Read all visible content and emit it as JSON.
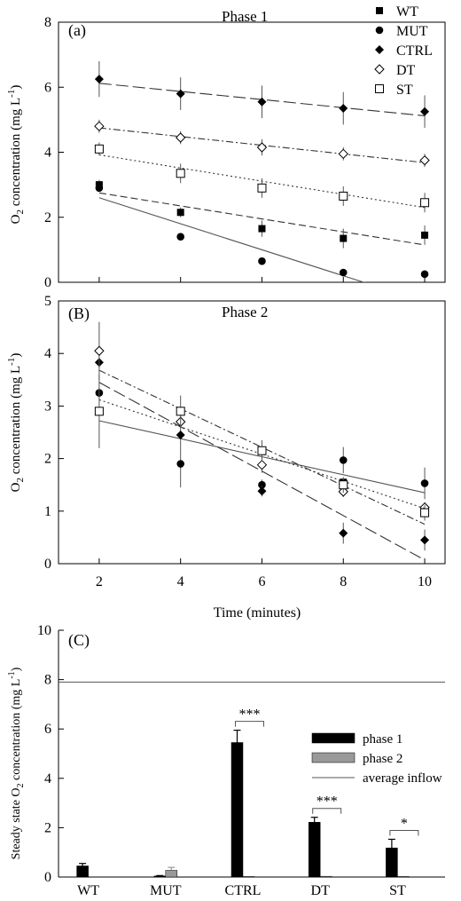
{
  "chart_data": [
    {
      "panel": "(a)",
      "type": "scatter",
      "title": "Phase 1",
      "ylabel": "O2 concentration (mg L-1)",
      "xlabel": "",
      "ylim": [
        0,
        8
      ],
      "yticks": [
        0,
        2,
        4,
        6,
        8
      ],
      "xlim": [
        1,
        10.5
      ],
      "legend_position": "top-right",
      "series": [
        {
          "name": "WT",
          "marker": "square-filled",
          "x": [
            2,
            4,
            6,
            8,
            10
          ],
          "y": [
            3.0,
            2.15,
            1.65,
            1.35,
            1.45
          ],
          "err": [
            0.15,
            0.15,
            0.25,
            0.3,
            0.3
          ],
          "fit": [
            2.75,
            1.15
          ],
          "dash": "8,4"
        },
        {
          "name": "MUT",
          "marker": "circle-filled",
          "x": [
            2,
            4,
            6,
            8,
            10
          ],
          "y": [
            2.9,
            1.4,
            0.65,
            0.3,
            0.25
          ],
          "err": [
            0.1,
            0.1,
            0.05,
            0.03,
            0.03
          ],
          "fit": [
            2.6,
            -0.6
          ],
          "dash": ""
        },
        {
          "name": "CTRL",
          "marker": "diamond-filled",
          "x": [
            2,
            4,
            6,
            8,
            10
          ],
          "y": [
            6.25,
            5.8,
            5.55,
            5.35,
            5.25
          ],
          "err": [
            0.55,
            0.5,
            0.5,
            0.5,
            0.5
          ],
          "fit": [
            6.12,
            5.12
          ],
          "dash": "14,5"
        },
        {
          "name": "DT",
          "marker": "diamond-open",
          "x": [
            2,
            4,
            6,
            8,
            10
          ],
          "y": [
            4.8,
            4.45,
            4.15,
            3.95,
            3.75
          ],
          "err": [
            0.2,
            0.2,
            0.25,
            0.2,
            0.2
          ],
          "fit": [
            4.75,
            3.68
          ],
          "dash": "8,3,2,3"
        },
        {
          "name": "ST",
          "marker": "square-open",
          "x": [
            2,
            4,
            6,
            8,
            10
          ],
          "y": [
            4.1,
            3.35,
            2.9,
            2.65,
            2.45
          ],
          "err": [
            0.2,
            0.3,
            0.3,
            0.3,
            0.3
          ],
          "fit": [
            3.92,
            2.3
          ],
          "dash": "2,3"
        }
      ]
    },
    {
      "panel": "(B)",
      "type": "scatter",
      "title": "Phase 2",
      "ylabel": "O2 concentration (mg L-1)",
      "xlabel": "Time (minutes)",
      "ylim": [
        0,
        5
      ],
      "yticks": [
        0,
        1,
        2,
        3,
        4,
        5
      ],
      "xlim": [
        1,
        10.5
      ],
      "xticks": [
        2,
        4,
        6,
        8,
        10
      ],
      "series": [
        {
          "name": "WT",
          "marker": "square-filled",
          "x": [
            2,
            4,
            6,
            8,
            10
          ],
          "y": [
            2.9,
            2.9,
            2.15,
            1.55,
            0.97
          ],
          "err": [
            0.05,
            0.05,
            0.05,
            0.05,
            0.05
          ],
          "fit": null,
          "dash": ""
        },
        {
          "name": "MUT",
          "marker": "circle-filled",
          "x": [
            2,
            4,
            6,
            8,
            10
          ],
          "y": [
            3.25,
            1.9,
            1.5,
            1.97,
            1.53
          ],
          "err": [
            0.1,
            0.45,
            0.1,
            0.25,
            0.3
          ],
          "fit": [
            2.72,
            1.35
          ],
          "dash": ""
        },
        {
          "name": "CTRL",
          "marker": "diamond-filled",
          "x": [
            2,
            4,
            6,
            8,
            10
          ],
          "y": [
            3.83,
            2.45,
            1.38,
            0.58,
            0.45
          ],
          "err": [
            0.1,
            0.1,
            0.1,
            0.2,
            0.2
          ],
          "fit": [
            3.45,
            0.07
          ],
          "dash": "14,5"
        },
        {
          "name": "DT",
          "marker": "diamond-open",
          "x": [
            2,
            4,
            6,
            8,
            10
          ],
          "y": [
            4.05,
            2.7,
            1.88,
            1.37,
            1.07
          ],
          "err": [
            0.55,
            0.15,
            0.15,
            0.1,
            0.1
          ],
          "fit": [
            3.68,
            0.75
          ],
          "dash": "8,3,2,3"
        },
        {
          "name": "ST",
          "marker": "square-open",
          "x": [
            2,
            4,
            6,
            8,
            10
          ],
          "y": [
            2.9,
            2.9,
            2.15,
            1.5,
            0.97
          ],
          "err": [
            0.7,
            0.3,
            0.2,
            0.15,
            0.15
          ],
          "fit": [
            3.12,
            1.05
          ],
          "dash": "2,3"
        }
      ]
    },
    {
      "panel": "(C)",
      "type": "bar",
      "ylabel": "Steady state O2 concentration (mg L-1)",
      "ylim": [
        0,
        10
      ],
      "yticks": [
        0,
        2,
        4,
        6,
        8,
        10
      ],
      "categories": [
        "WT",
        "MUT",
        "CTRL",
        "DT",
        "ST"
      ],
      "series": [
        {
          "name": "phase 1",
          "color": "#000000",
          "values": [
            0.45,
            0.04,
            5.45,
            2.22,
            1.18
          ],
          "err": [
            0.1,
            0.02,
            0.5,
            0.2,
            0.35
          ]
        },
        {
          "name": "phase 2",
          "color": "#999999",
          "values": [
            0.0,
            0.27,
            0.02,
            0.03,
            0.02
          ],
          "err": [
            0.0,
            0.12,
            0.0,
            0.0,
            0.0
          ]
        }
      ],
      "average_inflow": 7.9,
      "average_inflow_label": "average inflow",
      "legend_position": "right",
      "significance": [
        {
          "category": "CTRL",
          "label": "***"
        },
        {
          "category": "DT",
          "label": "***"
        },
        {
          "category": "ST",
          "label": "*"
        }
      ]
    }
  ]
}
